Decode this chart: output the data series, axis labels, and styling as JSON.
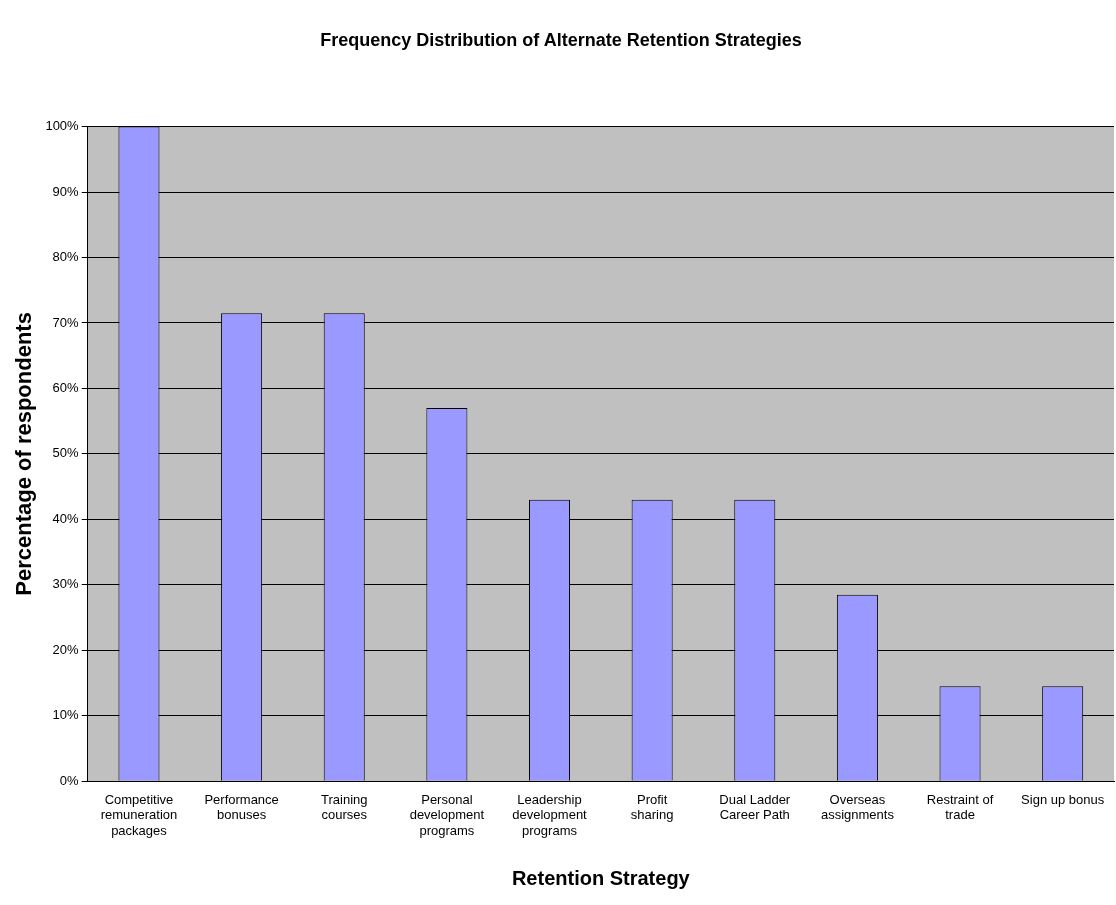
{
  "chart_data": {
    "type": "bar",
    "title": "Frequency Distribution of Alternate Retention Strategies",
    "xlabel": "Retention Strategy",
    "ylabel": "Percentage of respondents",
    "categories": [
      "Competitive remuneration packages",
      "Performance bonuses",
      "Training courses",
      "Personal development programs",
      "Leadership development programs",
      "Profit sharing",
      "Dual Ladder Career Path",
      "Overseas assignments",
      "Restraint of trade",
      "Sign up bonus"
    ],
    "values": [
      100,
      71.5,
      71.5,
      57,
      43,
      43,
      43,
      28.5,
      14.5,
      14.5
    ],
    "color": "#9999ff",
    "ylim": [
      0,
      100
    ],
    "yticks": [
      {
        "value": 0,
        "label": "0%"
      },
      {
        "value": 10,
        "label": "10%"
      },
      {
        "value": 20,
        "label": "20%"
      },
      {
        "value": 30,
        "label": "30%"
      },
      {
        "value": 40,
        "label": "40%"
      },
      {
        "value": 50,
        "label": "50%"
      },
      {
        "value": 60,
        "label": "60%"
      },
      {
        "value": 70,
        "label": "70%"
      },
      {
        "value": 80,
        "label": "80%"
      },
      {
        "value": 90,
        "label": "90%"
      },
      {
        "value": 100,
        "label": "100%"
      }
    ],
    "grid": "y",
    "legend": false
  }
}
